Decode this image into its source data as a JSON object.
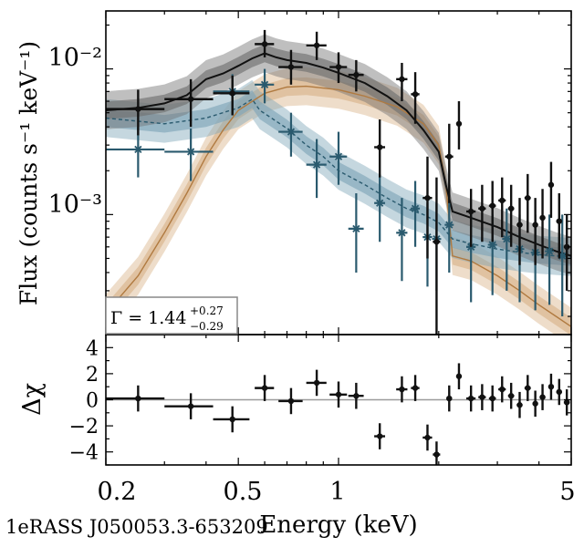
{
  "source_name": "1eRASS J050053.3-653209",
  "colors": {
    "total": "#111111",
    "total_band": "#707070",
    "component_powerlaw": "#b07a40",
    "component_powerlaw_band": "#d9b48a",
    "component_soft": "#2a5a6e",
    "component_soft_band": "#7fa6b8",
    "residual_zero": "#9a9a9a"
  },
  "chart_data": [
    {
      "type": "line",
      "panel": "spectrum",
      "xlabel": "Energy (keV)",
      "ylabel": "Flux (counts s⁻¹ keV⁻¹)",
      "xscale": "log",
      "yscale": "log",
      "xlim": [
        0.2,
        5
      ],
      "ylim": [
        0.00015,
        0.025
      ],
      "xticks": [
        0.2,
        0.5,
        1,
        5
      ],
      "xtick_labels": [
        "0.2",
        "0.5",
        "1",
        "5"
      ],
      "yticks": [
        0.001,
        0.01
      ],
      "ytick_labels": [
        "10⁻³",
        "10⁻²"
      ],
      "annotation": {
        "prefix": "Γ = 1.44",
        "sup": "+0.27",
        "sub": "−0.29"
      },
      "model_total": {
        "x": [
          0.2,
          0.25,
          0.3,
          0.35,
          0.4,
          0.45,
          0.5,
          0.55,
          0.6,
          0.65,
          0.7,
          0.8,
          0.9,
          1.0,
          1.2,
          1.4,
          1.6,
          1.8,
          2.0,
          2.1,
          2.2,
          2.5,
          3.0,
          3.5,
          4.0,
          4.5,
          5.0
        ],
        "y": [
          0.0052,
          0.0054,
          0.0058,
          0.0066,
          0.0085,
          0.0093,
          0.0105,
          0.0118,
          0.0128,
          0.012,
          0.0115,
          0.011,
          0.0102,
          0.0094,
          0.008,
          0.0065,
          0.0052,
          0.0038,
          0.0027,
          0.0016,
          0.00105,
          0.00095,
          0.00082,
          0.0007,
          0.00062,
          0.00056,
          0.00052
        ]
      },
      "model_powerlaw": {
        "x": [
          0.2,
          0.25,
          0.3,
          0.35,
          0.4,
          0.45,
          0.5,
          0.6,
          0.7,
          0.8,
          1.0,
          1.2,
          1.5,
          1.8,
          2.0,
          2.1,
          2.2,
          2.5,
          3.0,
          3.5,
          4.0,
          4.5,
          5.0
        ],
        "y": [
          0.00021,
          0.00038,
          0.00075,
          0.0014,
          0.0025,
          0.0038,
          0.0052,
          0.0068,
          0.0075,
          0.0076,
          0.0072,
          0.0065,
          0.0055,
          0.0042,
          0.003,
          0.0016,
          0.00052,
          0.00048,
          0.00038,
          0.0003,
          0.00024,
          0.0002,
          0.00017
        ]
      },
      "model_soft": {
        "x": [
          0.2,
          0.3,
          0.4,
          0.5,
          0.55,
          0.58,
          0.62,
          0.7,
          0.8,
          0.9,
          1.0,
          1.2,
          1.4,
          1.6,
          1.8,
          2.0,
          2.2,
          2.5,
          3.0,
          3.5,
          4.0,
          4.5,
          5.0
        ],
        "y": [
          0.0046,
          0.0042,
          0.0046,
          0.0054,
          0.0062,
          0.0052,
          0.0047,
          0.0039,
          0.003,
          0.0025,
          0.002,
          0.0016,
          0.0013,
          0.0011,
          0.001,
          0.00088,
          0.00068,
          0.00063,
          0.00058,
          0.00055,
          0.00053,
          0.00052,
          0.00051
        ]
      },
      "data_total": [
        {
          "x": 0.25,
          "y": 0.0053,
          "xerr": [
            0.05,
            0.05
          ],
          "ylo": 0.0035,
          "yhi": 0.0072
        },
        {
          "x": 0.36,
          "y": 0.0062,
          "xerr": [
            0.06,
            0.06
          ],
          "ylo": 0.004,
          "yhi": 0.0085
        },
        {
          "x": 0.48,
          "y": 0.0068,
          "xerr": [
            0.06,
            0.06
          ],
          "ylo": 0.0048,
          "yhi": 0.009
        },
        {
          "x": 0.6,
          "y": 0.0148,
          "xerr": [
            0.04,
            0.04
          ],
          "ylo": 0.012,
          "yhi": 0.0185
        },
        {
          "x": 0.72,
          "y": 0.0103,
          "xerr": [
            0.06,
            0.06
          ],
          "ylo": 0.0078,
          "yhi": 0.0135
        },
        {
          "x": 0.86,
          "y": 0.0145,
          "xerr": [
            0.06,
            0.06
          ],
          "ylo": 0.0115,
          "yhi": 0.018
        },
        {
          "x": 1.0,
          "y": 0.0103,
          "xerr": [
            0.06,
            0.06
          ],
          "ylo": 0.008,
          "yhi": 0.013
        },
        {
          "x": 1.13,
          "y": 0.0091,
          "xerr": [
            0.06,
            0.06
          ],
          "ylo": 0.007,
          "yhi": 0.0115
        },
        {
          "x": 1.33,
          "y": 0.0029,
          "xerr": [
            0.05,
            0.05
          ],
          "ylo": 0.0018,
          "yhi": 0.0045
        },
        {
          "x": 1.55,
          "y": 0.0085,
          "xerr": [
            0.06,
            0.06
          ],
          "ylo": 0.006,
          "yhi": 0.011
        },
        {
          "x": 1.7,
          "y": 0.0067,
          "xerr": [
            0.05,
            0.05
          ],
          "ylo": 0.0042,
          "yhi": 0.0095
        },
        {
          "x": 1.85,
          "y": 0.0013,
          "xerr": [
            0.06,
            0.06
          ],
          "ylo": 0.0005,
          "yhi": 0.0025
        },
        {
          "x": 1.97,
          "y": 0.00065,
          "xerr": [
            0.05,
            0.05
          ],
          "ylo": 0.00015,
          "yhi": 0.0018
        },
        {
          "x": 2.15,
          "y": 0.0025,
          "xerr": [
            0.06,
            0.06
          ],
          "ylo": 0.0012,
          "yhi": 0.0042
        },
        {
          "x": 2.3,
          "y": 0.0042,
          "xerr": [
            0.04,
            0.04
          ],
          "ylo": 0.0028,
          "yhi": 0.006
        },
        {
          "x": 2.5,
          "y": 0.00105,
          "xerr": [
            0.08,
            0.08
          ],
          "ylo": 0.0006,
          "yhi": 0.0015
        },
        {
          "x": 2.7,
          "y": 0.0011,
          "xerr": [
            0.07,
            0.07
          ],
          "ylo": 0.00065,
          "yhi": 0.0016
        },
        {
          "x": 2.9,
          "y": 0.00115,
          "xerr": [
            0.07,
            0.07
          ],
          "ylo": 0.00065,
          "yhi": 0.0017
        },
        {
          "x": 3.1,
          "y": 0.00125,
          "xerr": [
            0.08,
            0.08
          ],
          "ylo": 0.0007,
          "yhi": 0.0018
        },
        {
          "x": 3.3,
          "y": 0.0011,
          "xerr": [
            0.07,
            0.07
          ],
          "ylo": 0.0006,
          "yhi": 0.0016
        },
        {
          "x": 3.5,
          "y": 0.00085,
          "xerr": [
            0.07,
            0.07
          ],
          "ylo": 0.00045,
          "yhi": 0.0013
        },
        {
          "x": 3.7,
          "y": 0.0013,
          "xerr": [
            0.08,
            0.08
          ],
          "ylo": 0.00075,
          "yhi": 0.0019
        },
        {
          "x": 3.9,
          "y": 0.00085,
          "xerr": [
            0.07,
            0.07
          ],
          "ylo": 0.00045,
          "yhi": 0.0013
        },
        {
          "x": 4.1,
          "y": 0.00095,
          "xerr": [
            0.08,
            0.08
          ],
          "ylo": 0.0005,
          "yhi": 0.0015
        },
        {
          "x": 4.35,
          "y": 0.0016,
          "xerr": [
            0.08,
            0.08
          ],
          "ylo": 0.00095,
          "yhi": 0.0023
        },
        {
          "x": 4.6,
          "y": 0.0009,
          "xerr": [
            0.09,
            0.09
          ],
          "ylo": 0.0005,
          "yhi": 0.0014
        },
        {
          "x": 4.85,
          "y": 0.0006,
          "xerr": [
            0.1,
            0.1
          ],
          "ylo": 0.0003,
          "yhi": 0.001
        }
      ],
      "data_soft": [
        {
          "x": 0.25,
          "y": 0.0028,
          "xerr": [
            0.05,
            0.05
          ],
          "ylo": 0.0018,
          "yhi": 0.004
        },
        {
          "x": 0.36,
          "y": 0.0027,
          "xerr": [
            0.06,
            0.06
          ],
          "ylo": 0.0017,
          "yhi": 0.0039
        },
        {
          "x": 0.48,
          "y": 0.007,
          "xerr": [
            0.06,
            0.06
          ],
          "ylo": 0.005,
          "yhi": 0.0092
        },
        {
          "x": 0.6,
          "y": 0.0078,
          "xerr": [
            0.04,
            0.04
          ],
          "ylo": 0.0058,
          "yhi": 0.01
        },
        {
          "x": 0.72,
          "y": 0.0037,
          "xerr": [
            0.06,
            0.06
          ],
          "ylo": 0.0025,
          "yhi": 0.005
        },
        {
          "x": 0.86,
          "y": 0.0022,
          "xerr": [
            0.06,
            0.06
          ],
          "ylo": 0.0013,
          "yhi": 0.0033
        },
        {
          "x": 1.0,
          "y": 0.0025,
          "xerr": [
            0.06,
            0.06
          ],
          "ylo": 0.0016,
          "yhi": 0.0037
        },
        {
          "x": 1.13,
          "y": 0.0008,
          "xerr": [
            0.06,
            0.06
          ],
          "ylo": 0.0004,
          "yhi": 0.0014
        },
        {
          "x": 1.33,
          "y": 0.0012,
          "xerr": [
            0.05,
            0.05
          ],
          "ylo": 0.00065,
          "yhi": 0.0019
        },
        {
          "x": 1.55,
          "y": 0.00075,
          "xerr": [
            0.06,
            0.06
          ],
          "ylo": 0.00035,
          "yhi": 0.0013
        },
        {
          "x": 1.7,
          "y": 0.0011,
          "xerr": [
            0.05,
            0.05
          ],
          "ylo": 0.0006,
          "yhi": 0.0017
        },
        {
          "x": 1.85,
          "y": 0.0007,
          "xerr": [
            0.06,
            0.06
          ],
          "ylo": 0.00032,
          "yhi": 0.0012
        },
        {
          "x": 1.97,
          "y": 0.00068,
          "xerr": [
            0.05,
            0.05
          ],
          "ylo": 0.0003,
          "yhi": 0.0012
        },
        {
          "x": 2.15,
          "y": 0.00085,
          "xerr": [
            0.06,
            0.06
          ],
          "ylo": 0.0004,
          "yhi": 0.0014
        },
        {
          "x": 2.5,
          "y": 0.0006,
          "xerr": [
            0.08,
            0.08
          ],
          "ylo": 0.00025,
          "yhi": 0.001
        },
        {
          "x": 2.9,
          "y": 0.00062,
          "xerr": [
            0.07,
            0.07
          ],
          "ylo": 0.00028,
          "yhi": 0.001
        },
        {
          "x": 3.2,
          "y": 0.00068,
          "xerr": [
            0.08,
            0.08
          ],
          "ylo": 0.0003,
          "yhi": 0.0011
        },
        {
          "x": 3.5,
          "y": 0.00058,
          "xerr": [
            0.07,
            0.07
          ],
          "ylo": 0.00025,
          "yhi": 0.001
        },
        {
          "x": 3.9,
          "y": 0.00055,
          "xerr": [
            0.07,
            0.07
          ],
          "ylo": 0.00022,
          "yhi": 0.001
        },
        {
          "x": 4.3,
          "y": 0.00056,
          "xerr": [
            0.08,
            0.08
          ],
          "ylo": 0.00024,
          "yhi": 0.001
        },
        {
          "x": 4.7,
          "y": 0.00052,
          "xerr": [
            0.09,
            0.09
          ],
          "ylo": 0.0002,
          "yhi": 0.001
        }
      ]
    },
    {
      "type": "scatter",
      "panel": "residuals",
      "xlabel": "Energy (keV)",
      "ylabel": "Δχ",
      "xscale": "log",
      "xlim": [
        0.2,
        5
      ],
      "ylim": [
        -5,
        5
      ],
      "yticks": [
        -4,
        -2,
        0,
        2,
        4
      ],
      "ytick_labels": [
        "−4",
        "−2",
        "0",
        "2",
        "4"
      ],
      "points": [
        {
          "x": 0.25,
          "y": 0.1,
          "xerr": [
            0.05,
            0.05
          ],
          "yerr": 1
        },
        {
          "x": 0.36,
          "y": -0.5,
          "xerr": [
            0.06,
            0.06
          ],
          "yerr": 1
        },
        {
          "x": 0.48,
          "y": -1.5,
          "xerr": [
            0.06,
            0.06
          ],
          "yerr": 1
        },
        {
          "x": 0.6,
          "y": 0.9,
          "xerr": [
            0.04,
            0.04
          ],
          "yerr": 1
        },
        {
          "x": 0.72,
          "y": -0.1,
          "xerr": [
            0.06,
            0.06
          ],
          "yerr": 1
        },
        {
          "x": 0.86,
          "y": 1.3,
          "xerr": [
            0.06,
            0.06
          ],
          "yerr": 1
        },
        {
          "x": 1.0,
          "y": 0.4,
          "xerr": [
            0.06,
            0.06
          ],
          "yerr": 1
        },
        {
          "x": 1.13,
          "y": 0.3,
          "xerr": [
            0.06,
            0.06
          ],
          "yerr": 1
        },
        {
          "x": 1.33,
          "y": -2.8,
          "xerr": [
            0.05,
            0.05
          ],
          "yerr": 1
        },
        {
          "x": 1.55,
          "y": 0.8,
          "xerr": [
            0.06,
            0.06
          ],
          "yerr": 1
        },
        {
          "x": 1.7,
          "y": 0.9,
          "xerr": [
            0.05,
            0.05
          ],
          "yerr": 1
        },
        {
          "x": 1.85,
          "y": -2.9,
          "xerr": [
            0.06,
            0.06
          ],
          "yerr": 1
        },
        {
          "x": 1.97,
          "y": -4.2,
          "xerr": [
            0.05,
            0.05
          ],
          "yerr": 1
        },
        {
          "x": 2.15,
          "y": 0.1,
          "xerr": [
            0.04,
            0.04
          ],
          "yerr": 1
        },
        {
          "x": 2.3,
          "y": 1.8,
          "xerr": [
            0.04,
            0.04
          ],
          "yerr": 1
        },
        {
          "x": 2.5,
          "y": 0.1,
          "xerr": [
            0.08,
            0.08
          ],
          "yerr": 1
        },
        {
          "x": 2.7,
          "y": 0.2,
          "xerr": [
            0.07,
            0.07
          ],
          "yerr": 1
        },
        {
          "x": 2.9,
          "y": 0.1,
          "xerr": [
            0.07,
            0.07
          ],
          "yerr": 1
        },
        {
          "x": 3.1,
          "y": 0.8,
          "xerr": [
            0.08,
            0.08
          ],
          "yerr": 1
        },
        {
          "x": 3.3,
          "y": 0.3,
          "xerr": [
            0.07,
            0.07
          ],
          "yerr": 1
        },
        {
          "x": 3.5,
          "y": -0.4,
          "xerr": [
            0.07,
            0.07
          ],
          "yerr": 1
        },
        {
          "x": 3.7,
          "y": 0.9,
          "xerr": [
            0.08,
            0.08
          ],
          "yerr": 1
        },
        {
          "x": 3.9,
          "y": -0.3,
          "xerr": [
            0.07,
            0.07
          ],
          "yerr": 1
        },
        {
          "x": 4.1,
          "y": 0.2,
          "xerr": [
            0.08,
            0.08
          ],
          "yerr": 1
        },
        {
          "x": 4.35,
          "y": 1.0,
          "xerr": [
            0.08,
            0.08
          ],
          "yerr": 1
        },
        {
          "x": 4.6,
          "y": 0.6,
          "xerr": [
            0.09,
            0.09
          ],
          "yerr": 1
        },
        {
          "x": 4.85,
          "y": -0.2,
          "xerr": [
            0.1,
            0.1
          ],
          "yerr": 1
        }
      ]
    }
  ]
}
